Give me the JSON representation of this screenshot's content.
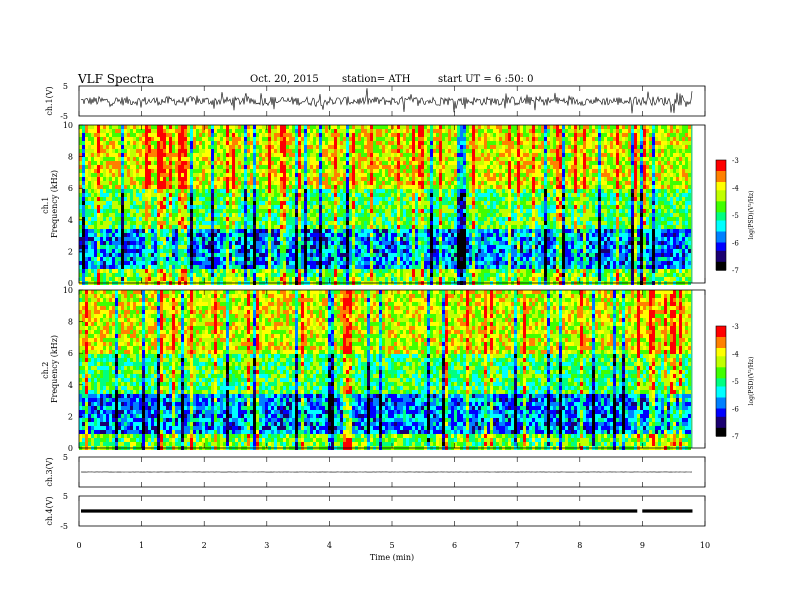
{
  "header": {
    "title": "VLF Spectra",
    "date": "Oct. 20, 2015",
    "station": "station= ATH",
    "start": "start UT = 6 :50: 0"
  },
  "colors": {
    "colormap": [
      "#000000",
      "#1a0070",
      "#0000ff",
      "#0080ff",
      "#00ffff",
      "#00ff80",
      "#40ff00",
      "#c0ff00",
      "#ffff00",
      "#ff8000",
      "#ff0000",
      "#ffffff"
    ]
  },
  "chart_data": [
    {
      "panel": "ch1-waveform",
      "type": "line",
      "ylabel": "ch.1(V)",
      "ylim": [
        -5,
        5
      ],
      "yticks": [
        "5",
        "-5"
      ],
      "xlim": [
        0,
        10
      ],
      "baseline": 0,
      "noise_amplitude": 1.5
    },
    {
      "panel": "ch1-spectrogram",
      "type": "heatmap",
      "ylabel": "ch.1\nFrequency (kHz)",
      "ylim": [
        0,
        10
      ],
      "yticks": [
        "0",
        "2",
        "4",
        "6",
        "8",
        "10"
      ],
      "xlim": [
        0,
        10
      ],
      "data_end_min": 9.8,
      "colorbar": {
        "label": "log(PSD)(V²/Hz)",
        "range": [
          -7,
          -3
        ],
        "ticks": [
          "-3",
          "-4",
          "-5",
          "-6",
          "-7"
        ]
      }
    },
    {
      "panel": "ch2-spectrogram",
      "type": "heatmap",
      "ylabel": "ch.2\nFrequency (kHz)",
      "ylim": [
        0,
        10
      ],
      "yticks": [
        "0",
        "2",
        "4",
        "6",
        "8",
        "10"
      ],
      "xlim": [
        0,
        10
      ],
      "data_end_min": 9.8,
      "colorbar": {
        "label": "log(PSD)(V²/Hz)",
        "range": [
          -7,
          -3
        ],
        "ticks": [
          "-3",
          "-4",
          "-5",
          "-6",
          "-7"
        ]
      }
    },
    {
      "panel": "ch3-waveform",
      "type": "line",
      "ylabel": "ch.3(V)",
      "ylim": [
        -5,
        5
      ],
      "yticks": [
        "5"
      ],
      "xlim": [
        0,
        10
      ],
      "baseline": 0,
      "noise_amplitude": 0.05
    },
    {
      "panel": "ch4-waveform",
      "type": "line",
      "ylabel": "ch.4(V)",
      "ylim": [
        -5,
        5
      ],
      "yticks": [
        "5",
        "-5"
      ],
      "xlim": [
        0,
        10
      ],
      "baseline": 0,
      "noise_amplitude": 0.3,
      "gap_at_min": 8.95
    }
  ],
  "xaxis": {
    "label": "Time (min)",
    "ticks": [
      "0",
      "1",
      "2",
      "3",
      "4",
      "5",
      "6",
      "7",
      "8",
      "9",
      "10"
    ]
  }
}
